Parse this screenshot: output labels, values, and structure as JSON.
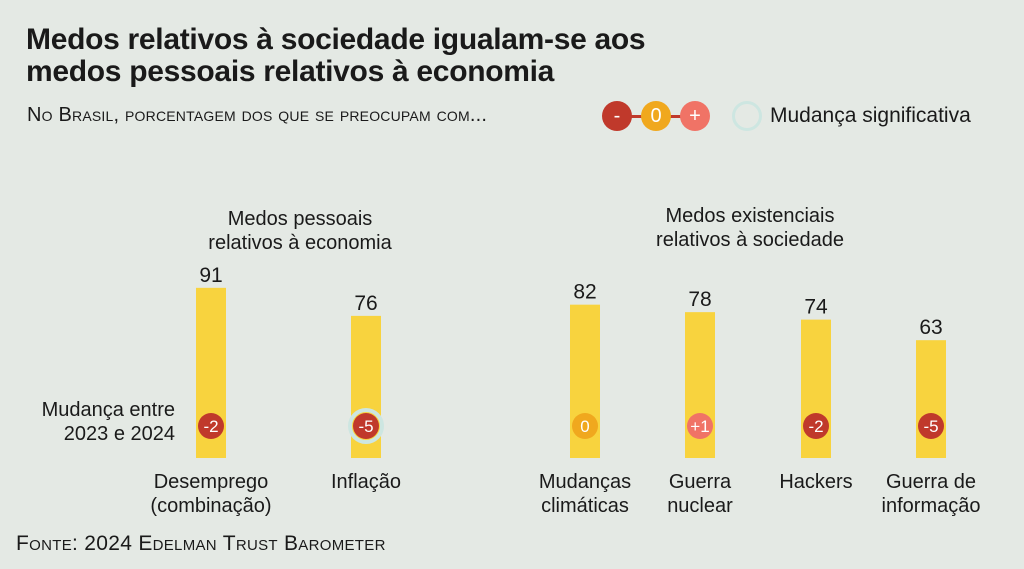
{
  "chart_data": {
    "type": "bar",
    "title": "Medos relativos à sociedade igualam-se aos medos pessoais relativos à economia",
    "subtitle": "No Brasil, porcentagem dos que se preocupam com...",
    "change_label": "Mudança entre 2023 e 2024",
    "groups": [
      {
        "name": "Medos pessoais relativos à economia",
        "categories": [
          0,
          1
        ]
      },
      {
        "name": "Medos existenciais relativos à sociedade",
        "categories": [
          2,
          3,
          4,
          5
        ]
      }
    ],
    "categories": [
      "Desemprego (combinação)",
      "Inflação",
      "Mudanças climáticas",
      "Guerra nuclear",
      "Hackers",
      "Guerra de informação"
    ],
    "values": [
      91,
      76,
      82,
      78,
      74,
      63
    ],
    "changes": [
      "-2",
      "-5",
      "0",
      "+1",
      "-2",
      "-5"
    ],
    "significant": [
      false,
      true,
      false,
      false,
      false,
      false
    ],
    "legend": {
      "items": [
        {
          "symbol": "-",
          "color": "#c0392b"
        },
        {
          "symbol": "0",
          "color": "#f0a81e"
        },
        {
          "symbol": "+",
          "color": "#f07366"
        }
      ],
      "significant_label": "Mudança significativa"
    },
    "colors": {
      "bar": "#f8d33e",
      "negative": "#c0392b",
      "neutral": "#f0a81e",
      "positive": "#f07366",
      "significant_ring": "#cde6e1"
    },
    "source": "Fonte: 2024 Edelman Trust Barometer"
  }
}
